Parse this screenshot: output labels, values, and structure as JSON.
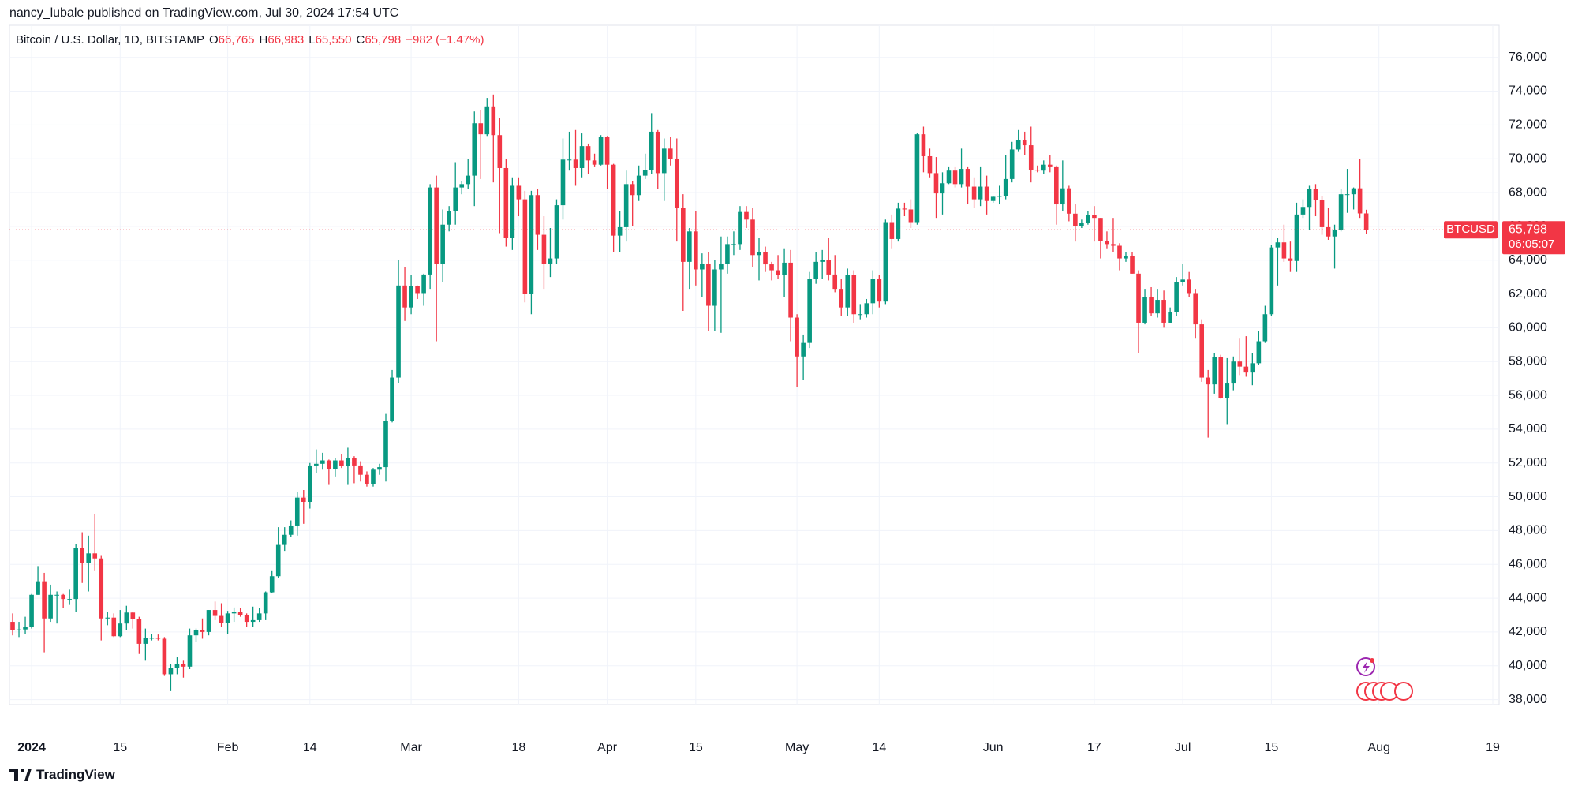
{
  "header": {
    "author_line": "nancy_lubale published on TradingView.com, Jul 30, 2024 17:54 UTC"
  },
  "footer": {
    "brand": "TradingView"
  },
  "chart_data": {
    "type": "candlestick",
    "symbol": "Bitcoin / U.S. Dollar, 1D, BITSTAMP",
    "legend": [
      {
        "key": "O",
        "value": "66,765"
      },
      {
        "key": "H",
        "value": "66,983"
      },
      {
        "key": "L",
        "value": "65,550"
      },
      {
        "key": "C",
        "value": "65,798"
      }
    ],
    "change": "−982 (−1.47%)",
    "up_color": "#089981",
    "down_color": "#f23645",
    "grid": true,
    "price_tag": {
      "symbol": "BTCUSD",
      "price": "65,798",
      "countdown": "06:05:07"
    },
    "xlim": [
      -0.5,
      235
    ],
    "xticks": [
      {
        "value": 3,
        "label": "2024"
      },
      {
        "value": 17,
        "label": "15"
      },
      {
        "value": 34,
        "label": "Feb"
      },
      {
        "value": 47,
        "label": "14"
      },
      {
        "value": 63,
        "label": "Mar"
      },
      {
        "value": 80,
        "label": "18"
      },
      {
        "value": 94,
        "label": "Apr"
      },
      {
        "value": 108,
        "label": "15"
      },
      {
        "value": 124,
        "label": "May"
      },
      {
        "value": 137,
        "label": "14"
      },
      {
        "value": 155,
        "label": "Jun"
      },
      {
        "value": 171,
        "label": "17"
      },
      {
        "value": 185,
        "label": "Jul"
      },
      {
        "value": 199,
        "label": "15"
      },
      {
        "value": 216,
        "label": "Aug"
      },
      {
        "value": 234,
        "label": "19"
      }
    ],
    "ylim": [
      37700,
      77900
    ],
    "yticks": [
      {
        "value": 38000,
        "label": "38,000"
      },
      {
        "value": 40000,
        "label": "40,000"
      },
      {
        "value": 42000,
        "label": "42,000"
      },
      {
        "value": 44000,
        "label": "44,000"
      },
      {
        "value": 46000,
        "label": "46,000"
      },
      {
        "value": 48000,
        "label": "48,000"
      },
      {
        "value": 50000,
        "label": "50,000"
      },
      {
        "value": 52000,
        "label": "52,000"
      },
      {
        "value": 54000,
        "label": "54,000"
      },
      {
        "value": 56000,
        "label": "56,000"
      },
      {
        "value": 58000,
        "label": "58,000"
      },
      {
        "value": 60000,
        "label": "60,000"
      },
      {
        "value": 62000,
        "label": "62,000"
      },
      {
        "value": 64000,
        "label": "64,000"
      },
      {
        "value": 66000,
        "label": "66,000"
      },
      {
        "value": 68000,
        "label": "68,000"
      },
      {
        "value": 70000,
        "label": "70,000"
      },
      {
        "value": 72000,
        "label": "72,000"
      },
      {
        "value": 74000,
        "label": "74,000"
      },
      {
        "value": 76000,
        "label": "76,000"
      }
    ],
    "candles": [
      [
        42600,
        43100,
        41800,
        42100
      ],
      [
        42100,
        42600,
        41700,
        42150
      ],
      [
        42150,
        42900,
        41900,
        42300
      ],
      [
        42300,
        44250,
        42200,
        44200
      ],
      [
        44200,
        45900,
        44200,
        45000
      ],
      [
        45000,
        45500,
        40800,
        42800
      ],
      [
        42800,
        44800,
        42600,
        44200
      ],
      [
        44200,
        44400,
        42500,
        44200
      ],
      [
        44200,
        44250,
        43400,
        43950
      ],
      [
        43950,
        44500,
        43600,
        43950
      ],
      [
        43950,
        47200,
        43200,
        46950
      ],
      [
        46950,
        47900,
        44900,
        46100
      ],
      [
        46100,
        47700,
        44400,
        46650
      ],
      [
        46650,
        49000,
        45600,
        46350
      ],
      [
        46350,
        46500,
        41500,
        42800
      ],
      [
        42800,
        43200,
        42400,
        42850
      ],
      [
        42850,
        43100,
        41700,
        41750
      ],
      [
        41750,
        43300,
        41700,
        42500
      ],
      [
        42500,
        43550,
        42100,
        43150
      ],
      [
        43150,
        43200,
        42200,
        42750
      ],
      [
        42750,
        42900,
        40700,
        41300
      ],
      [
        41300,
        42200,
        40300,
        41650
      ],
      [
        41650,
        41900,
        41500,
        41650
      ],
      [
        41650,
        41850,
        41500,
        41600
      ],
      [
        41600,
        41700,
        39400,
        39500
      ],
      [
        39500,
        40100,
        38500,
        39850
      ],
      [
        39850,
        40500,
        39500,
        40100
      ],
      [
        40100,
        40300,
        39300,
        39950
      ],
      [
        39950,
        42200,
        39800,
        41800
      ],
      [
        41800,
        42200,
        41400,
        42100
      ],
      [
        42100,
        42800,
        41600,
        42000
      ],
      [
        42000,
        43300,
        41800,
        43300
      ],
      [
        43300,
        43800,
        42700,
        42950
      ],
      [
        42950,
        43700,
        42300,
        42550
      ],
      [
        42550,
        43250,
        41900,
        43100
      ],
      [
        43100,
        43450,
        42600,
        43200
      ],
      [
        43200,
        43400,
        42900,
        43000
      ],
      [
        43000,
        43100,
        42300,
        42600
      ],
      [
        42600,
        43500,
        42300,
        42700
      ],
      [
        42700,
        43400,
        42600,
        43100
      ],
      [
        43100,
        44400,
        42700,
        44350
      ],
      [
        44350,
        45600,
        44300,
        45300
      ],
      [
        45300,
        48200,
        45200,
        47150
      ],
      [
        47150,
        48200,
        46800,
        47750
      ],
      [
        47750,
        48600,
        47600,
        48300
      ],
      [
        48300,
        50300,
        47700,
        49950
      ],
      [
        49950,
        50400,
        48400,
        49700
      ],
      [
        49700,
        52000,
        49300,
        51850
      ],
      [
        51850,
        52800,
        51400,
        51950
      ],
      [
        51950,
        52600,
        51600,
        52150
      ],
      [
        52150,
        52200,
        50700,
        51650
      ],
      [
        51650,
        52300,
        51200,
        52150
      ],
      [
        52150,
        52500,
        51700,
        51800
      ],
      [
        51800,
        52900,
        50700,
        52300
      ],
      [
        52300,
        52400,
        50800,
        51850
      ],
      [
        51850,
        52100,
        50900,
        51300
      ],
      [
        51300,
        51500,
        50600,
        50750
      ],
      [
        50750,
        51700,
        50600,
        51600
      ],
      [
        51600,
        51950,
        51300,
        51750
      ],
      [
        51750,
        54900,
        50900,
        54500
      ],
      [
        54500,
        57500,
        54400,
        57050
      ],
      [
        57050,
        64000,
        56700,
        62500
      ],
      [
        62500,
        63600,
        60400,
        61200
      ],
      [
        61200,
        63100,
        60800,
        62450
      ],
      [
        62450,
        62500,
        61700,
        62050
      ],
      [
        62050,
        63200,
        61300,
        63150
      ],
      [
        63150,
        68500,
        62300,
        68300
      ],
      [
        68300,
        69000,
        59200,
        63800
      ],
      [
        63800,
        67000,
        62700,
        66100
      ],
      [
        66100,
        67200,
        65700,
        66900
      ],
      [
        66900,
        69800,
        66100,
        68300
      ],
      [
        68300,
        68700,
        67900,
        68500
      ],
      [
        68500,
        70000,
        68200,
        69000
      ],
      [
        69000,
        72800,
        67200,
        72100
      ],
      [
        72100,
        72900,
        68800,
        71450
      ],
      [
        71450,
        73600,
        71350,
        73100
      ],
      [
        73100,
        73800,
        68600,
        71400
      ],
      [
        71400,
        72400,
        65600,
        69450
      ],
      [
        69450,
        70000,
        64800,
        65300
      ],
      [
        65300,
        68900,
        64600,
        68400
      ],
      [
        68400,
        68900,
        66600,
        67600
      ],
      [
        67600,
        68100,
        61500,
        62000
      ],
      [
        62000,
        68100,
        60800,
        67850
      ],
      [
        67850,
        68200,
        64600,
        65500
      ],
      [
        65500,
        66600,
        62300,
        63800
      ],
      [
        63800,
        65900,
        63000,
        64100
      ],
      [
        64100,
        67600,
        63800,
        67250
      ],
      [
        67250,
        71200,
        66400,
        69950
      ],
      [
        69950,
        71600,
        69300,
        69950
      ],
      [
        69950,
        71700,
        68400,
        69450
      ],
      [
        69450,
        71500,
        68900,
        70750
      ],
      [
        70750,
        70900,
        69100,
        69900
      ],
      [
        69900,
        70300,
        69500,
        69650
      ],
      [
        69650,
        71400,
        69600,
        71300
      ],
      [
        71300,
        71350,
        68200,
        69650
      ],
      [
        69650,
        69700,
        64500,
        65450
      ],
      [
        65450,
        66900,
        64500,
        65950
      ],
      [
        65950,
        69300,
        65100,
        68500
      ],
      [
        68500,
        68700,
        66000,
        67850
      ],
      [
        67850,
        69600,
        67500,
        69000
      ],
      [
        69000,
        70300,
        68800,
        69350
      ],
      [
        69350,
        72700,
        69100,
        71600
      ],
      [
        71600,
        71700,
        68200,
        69150
      ],
      [
        69150,
        71200,
        67500,
        70600
      ],
      [
        70600,
        71300,
        69600,
        70000
      ],
      [
        70000,
        71200,
        65100,
        67100
      ],
      [
        67100,
        67900,
        61000,
        63900
      ],
      [
        63900,
        65900,
        62300,
        65700
      ],
      [
        65700,
        66900,
        62500,
        63450
      ],
      [
        63450,
        64400,
        61800,
        63800
      ],
      [
        63800,
        64500,
        59800,
        61300
      ],
      [
        61300,
        64000,
        59800,
        63450
      ],
      [
        63450,
        65400,
        59700,
        63800
      ],
      [
        63800,
        65400,
        63200,
        64950
      ],
      [
        64950,
        65700,
        64300,
        64950
      ],
      [
        64950,
        67200,
        64600,
        66850
      ],
      [
        66850,
        67200,
        65900,
        66400
      ],
      [
        66400,
        67100,
        63600,
        64300
      ],
      [
        64300,
        65300,
        62800,
        64500
      ],
      [
        64500,
        64800,
        63300,
        63750
      ],
      [
        63750,
        63900,
        62800,
        63400
      ],
      [
        63400,
        64300,
        62900,
        63100
      ],
      [
        63100,
        64700,
        61800,
        63850
      ],
      [
        63850,
        64600,
        59200,
        60600
      ],
      [
        60600,
        60800,
        56500,
        58300
      ],
      [
        58300,
        59600,
        56900,
        59100
      ],
      [
        59100,
        63300,
        58800,
        62900
      ],
      [
        62900,
        64500,
        62600,
        63900
      ],
      [
        63900,
        64600,
        62900,
        64000
      ],
      [
        64000,
        65300,
        62800,
        63150
      ],
      [
        63150,
        64300,
        62100,
        62300
      ],
      [
        62300,
        62900,
        60700,
        61200
      ],
      [
        61200,
        63500,
        60700,
        63100
      ],
      [
        63100,
        63400,
        60300,
        60800
      ],
      [
        60800,
        61400,
        60500,
        60800
      ],
      [
        60800,
        61700,
        60600,
        61450
      ],
      [
        61450,
        63400,
        60800,
        62900
      ],
      [
        62900,
        63100,
        61200,
        61550
      ],
      [
        61550,
        66400,
        61400,
        66250
      ],
      [
        66250,
        66700,
        64700,
        65250
      ],
      [
        65250,
        67400,
        65100,
        67050
      ],
      [
        67050,
        67400,
        66600,
        67000
      ],
      [
        67000,
        67600,
        65900,
        66250
      ],
      [
        66250,
        71500,
        66100,
        71450
      ],
      [
        71450,
        71900,
        69200,
        70150
      ],
      [
        70150,
        70600,
        68900,
        69150
      ],
      [
        69150,
        70100,
        66500,
        67950
      ],
      [
        67950,
        69200,
        66700,
        68550
      ],
      [
        68550,
        69500,
        68500,
        69300
      ],
      [
        69300,
        69500,
        68300,
        68500
      ],
      [
        68500,
        70600,
        68300,
        69400
      ],
      [
        69400,
        69500,
        67300,
        68350
      ],
      [
        68350,
        68900,
        67100,
        67600
      ],
      [
        67600,
        69500,
        67200,
        68350
      ],
      [
        68350,
        69000,
        66700,
        67500
      ],
      [
        67500,
        67800,
        67400,
        67750
      ],
      [
        67750,
        68400,
        67300,
        67800
      ],
      [
        67800,
        70200,
        67600,
        68800
      ],
      [
        68800,
        71000,
        68600,
        70550
      ],
      [
        70550,
        71700,
        70400,
        71100
      ],
      [
        71100,
        71600,
        70200,
        70800
      ],
      [
        70800,
        71900,
        68600,
        69350
      ],
      [
        69350,
        69600,
        69200,
        69300
      ],
      [
        69300,
        69900,
        69100,
        69650
      ],
      [
        69650,
        70200,
        69200,
        69500
      ],
      [
        69500,
        69600,
        66100,
        67300
      ],
      [
        67300,
        69900,
        66900,
        68250
      ],
      [
        68250,
        68400,
        66300,
        66750
      ],
      [
        66750,
        67300,
        65100,
        66000
      ],
      [
        66000,
        66400,
        65900,
        66200
      ],
      [
        66200,
        66900,
        66100,
        66650
      ],
      [
        66650,
        67200,
        65100,
        66500
      ],
      [
        66500,
        66500,
        64100,
        65150
      ],
      [
        65150,
        65700,
        64700,
        64950
      ],
      [
        64950,
        66500,
        64500,
        64850
      ],
      [
        64850,
        65000,
        63400,
        64100
      ],
      [
        64100,
        64500,
        63900,
        64250
      ],
      [
        64250,
        64500,
        63200,
        63200
      ],
      [
        63200,
        63400,
        58500,
        60300
      ],
      [
        60300,
        62300,
        60200,
        61800
      ],
      [
        61800,
        62400,
        60700,
        60850
      ],
      [
        60850,
        62300,
        60600,
        61650
      ],
      [
        61650,
        62200,
        60000,
        60300
      ],
      [
        60300,
        61200,
        60300,
        60950
      ],
      [
        60950,
        63000,
        60700,
        62700
      ],
      [
        62700,
        63800,
        62500,
        62850
      ],
      [
        62850,
        63300,
        61800,
        62050
      ],
      [
        62050,
        62300,
        59400,
        60200
      ],
      [
        60200,
        60500,
        56800,
        57050
      ],
      [
        57050,
        57500,
        53500,
        56650
      ],
      [
        56650,
        58500,
        56100,
        58250
      ],
      [
        58250,
        58400,
        55800,
        55850
      ],
      [
        55850,
        58200,
        54300,
        56700
      ],
      [
        56700,
        58300,
        56300,
        58000
      ],
      [
        58000,
        59400,
        57200,
        57700
      ],
      [
        57700,
        59500,
        57100,
        57350
      ],
      [
        57350,
        58500,
        56600,
        57900
      ],
      [
        57900,
        59800,
        57800,
        59200
      ],
      [
        59200,
        61300,
        59100,
        60800
      ],
      [
        60800,
        64900,
        60700,
        64750
      ],
      [
        64750,
        65300,
        62500,
        65050
      ],
      [
        65050,
        66100,
        63900,
        64100
      ],
      [
        64100,
        65100,
        63300,
        63950
      ],
      [
        63950,
        67400,
        63300,
        66700
      ],
      [
        66700,
        67600,
        66500,
        67150
      ],
      [
        67150,
        68400,
        65800,
        68200
      ],
      [
        68200,
        68500,
        66600,
        67550
      ],
      [
        67550,
        67800,
        65500,
        65950
      ],
      [
        65950,
        67100,
        65200,
        65400
      ],
      [
        65400,
        66100,
        63500,
        65800
      ],
      [
        65800,
        68200,
        65700,
        67900
      ],
      [
        67900,
        69400,
        66800,
        67900
      ],
      [
        67900,
        68300,
        67000,
        68250
      ],
      [
        68250,
        70000,
        66500,
        66765
      ],
      [
        66765,
        66983,
        65550,
        65798
      ]
    ]
  }
}
